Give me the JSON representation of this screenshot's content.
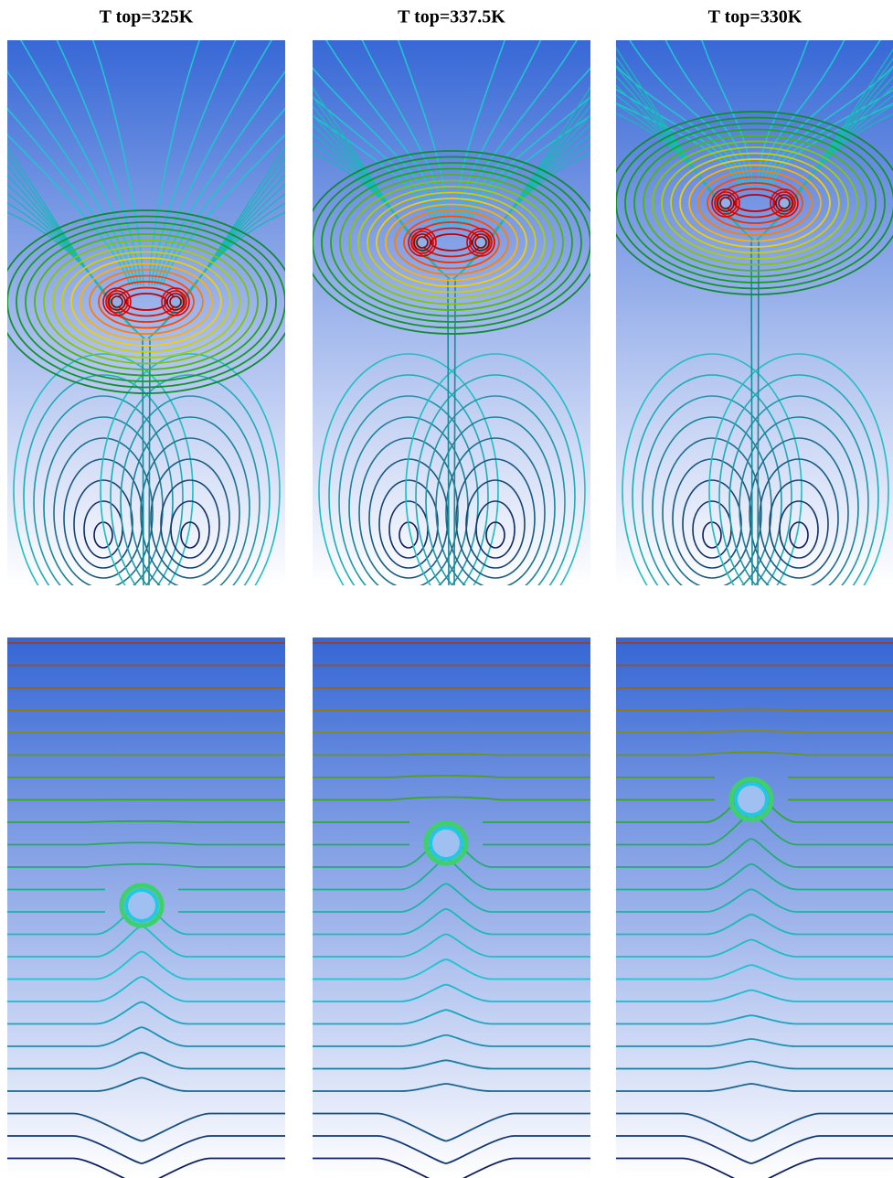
{
  "panels": [
    {
      "title": "T top=325K"
    },
    {
      "title": "T top=337.5K"
    },
    {
      "title": "T top=330K"
    }
  ]
}
